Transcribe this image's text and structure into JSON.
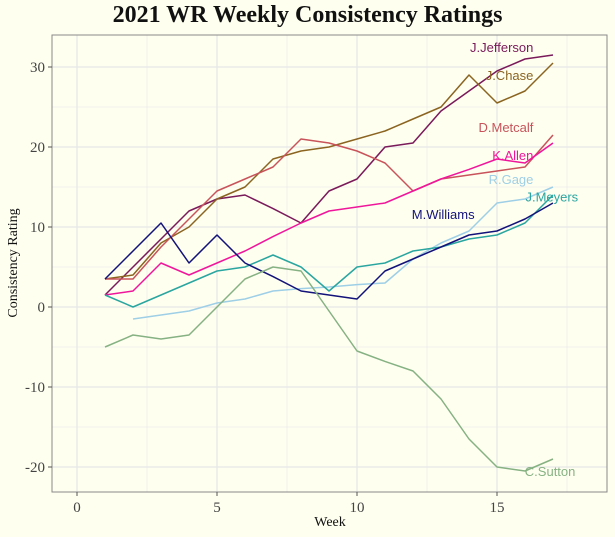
{
  "chart_data": {
    "type": "line",
    "title": "2021 WR Weekly Consistency Ratings",
    "xlabel": "Week",
    "ylabel": "Consistency Rating",
    "xlim": [
      -1,
      18.5
    ],
    "ylim": [
      -23,
      34
    ],
    "xticks": [
      0,
      5,
      10,
      15
    ],
    "yticks": [
      -20,
      -10,
      0,
      10,
      20,
      30
    ],
    "grid": true,
    "legend": "direct-labels-at-line-ends",
    "series": [
      {
        "name": "J.Jefferson",
        "color": "#7A1A5A",
        "x": [
          1,
          2,
          3,
          4,
          5,
          6,
          7,
          8,
          9,
          10,
          11,
          12,
          13,
          14,
          15,
          16,
          17
        ],
        "values": [
          1.5,
          5,
          8.5,
          12,
          13.5,
          14,
          12.3,
          10.5,
          14.5,
          16,
          20,
          20.5,
          24.5,
          27,
          29.5,
          31,
          31.5
        ]
      },
      {
        "name": "J.Chase",
        "color": "#8B6420",
        "x": [
          1,
          2,
          3,
          4,
          5,
          6,
          7,
          8,
          9,
          10,
          11,
          12,
          13,
          14,
          15,
          16,
          17
        ],
        "values": [
          3.5,
          4,
          8,
          10,
          13.5,
          15,
          18.5,
          19.5,
          20,
          21,
          22,
          23.5,
          25,
          29,
          25.5,
          27,
          30.5
        ]
      },
      {
        "name": "D.Metcalf",
        "color": "#C8535A",
        "x": [
          1,
          2,
          3,
          4,
          5,
          6,
          7,
          8,
          9,
          10,
          11,
          12,
          13,
          14,
          15,
          16,
          17
        ],
        "values": [
          3.5,
          3.5,
          7.5,
          11,
          14.5,
          16,
          17.5,
          21,
          20.5,
          19.5,
          18,
          14.5,
          16,
          16.5,
          17,
          17.5,
          21.5
        ]
      },
      {
        "name": "K.Allen",
        "color": "#F0169B",
        "x": [
          1,
          2,
          3,
          4,
          5,
          6,
          7,
          8,
          9,
          10,
          11,
          12,
          13,
          14,
          15,
          16,
          17
        ],
        "values": [
          1.5,
          2,
          5.5,
          4,
          5.5,
          7,
          8.8,
          10.5,
          12,
          12.5,
          13,
          14.5,
          16,
          17.2,
          18.5,
          18,
          20.5
        ]
      },
      {
        "name": "R.Gage",
        "color": "#9ECFE6",
        "x": [
          2,
          3,
          4,
          5,
          6,
          7,
          8,
          9,
          10,
          11,
          12,
          13,
          14,
          15,
          16,
          17
        ],
        "values": [
          -1.5,
          -1,
          -0.5,
          0.5,
          1,
          2,
          2.3,
          2.5,
          2.8,
          3,
          6,
          8,
          9.5,
          13,
          13.5,
          15
        ]
      },
      {
        "name": "J.Meyers",
        "color": "#2AA6A0",
        "x": [
          1,
          2,
          3,
          4,
          5,
          6,
          7,
          8,
          9,
          10,
          11,
          12,
          13,
          14,
          15,
          16,
          17
        ],
        "values": [
          1.5,
          0,
          1.5,
          3,
          4.5,
          5,
          6.5,
          5,
          2,
          5,
          5.5,
          7,
          7.5,
          8.5,
          9,
          10.5,
          14
        ]
      },
      {
        "name": "M.Williams",
        "color": "#12127A",
        "x": [
          1,
          2,
          3,
          4,
          5,
          6,
          7,
          8,
          9,
          10,
          11,
          12,
          13,
          14,
          15,
          16,
          17
        ],
        "values": [
          3.5,
          7,
          10.5,
          5.5,
          9,
          5.5,
          3.8,
          2,
          1.5,
          1,
          4.5,
          6,
          7.5,
          9,
          9.5,
          11,
          13
        ]
      },
      {
        "name": "C.Sutton",
        "color": "#86B283",
        "x": [
          1,
          2,
          3,
          4,
          5,
          6,
          7,
          8,
          9,
          10,
          11,
          12,
          13,
          14,
          15,
          16,
          17
        ],
        "values": [
          -5,
          -3.5,
          -4,
          -3.5,
          0,
          3.5,
          5,
          4.5,
          -0.5,
          -5.5,
          -6.8,
          -8,
          -11.5,
          -16.5,
          -20,
          -20.5,
          -19
        ]
      }
    ],
    "labels": [
      {
        "series": "J.Jefferson",
        "text": "J.Jefferson",
        "x": 16.3,
        "y": 32.5
      },
      {
        "series": "J.Chase",
        "text": "J.Chase",
        "x": 16.3,
        "y": 29
      },
      {
        "series": "D.Metcalf",
        "text": "D.Metcalf",
        "x": 16.3,
        "y": 22.5
      },
      {
        "series": "K.Allen",
        "text": "K.Allen",
        "x": 16.3,
        "y": 19
      },
      {
        "series": "R.Gage",
        "text": "R.Gage",
        "x": 16.3,
        "y": 16
      },
      {
        "series": "J.Meyers",
        "text": "J.Meyers",
        "x": 17.9,
        "y": 13.8
      },
      {
        "series": "M.Williams",
        "text": "M.Williams",
        "x": 14.2,
        "y": 11.6
      },
      {
        "series": "C.Sutton",
        "text": "C.Sutton",
        "x": 17.8,
        "y": -20.5
      }
    ]
  }
}
